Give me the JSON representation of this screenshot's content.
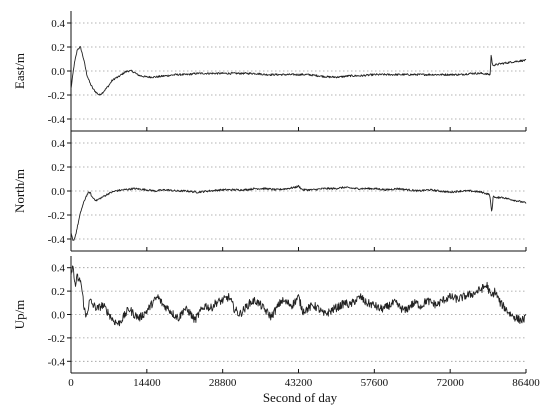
{
  "chart_data": [
    {
      "type": "line",
      "ylabel": "East/m",
      "ylim": [
        -0.5,
        0.5
      ],
      "yticks": [
        -0.4,
        -0.2,
        0.0,
        0.2,
        0.4
      ],
      "ytick_labels": [
        "-0.4",
        "-0.2",
        "0.0",
        "0.2",
        "0.4"
      ],
      "xlim": [
        0,
        86400
      ],
      "grid": "horizontal dotted",
      "series": [
        {
          "color": "#222222",
          "x": [
            0,
            600,
            1200,
            1800,
            2400,
            3000,
            3600,
            4200,
            4800,
            5400,
            6000,
            6600,
            7200,
            7800,
            8400,
            9000,
            9600,
            10200,
            10800,
            11400,
            12000,
            12600,
            13200,
            14400,
            16000,
            18000,
            20000,
            22000,
            24000,
            26000,
            28800,
            31000,
            33000,
            35000,
            37000,
            39000,
            41000,
            43200,
            45000,
            47000,
            49000,
            51000,
            53000,
            55000,
            57600,
            60000,
            62000,
            64000,
            66000,
            68000,
            70000,
            72000,
            74000,
            76000,
            78000,
            79600,
            79800,
            80000,
            80500,
            81500,
            83000,
            84500,
            86400
          ],
          "y": [
            -0.15,
            0.05,
            0.18,
            0.2,
            0.1,
            -0.03,
            -0.1,
            -0.15,
            -0.18,
            -0.2,
            -0.18,
            -0.15,
            -0.12,
            -0.08,
            -0.06,
            -0.05,
            -0.03,
            -0.01,
            0.0,
            0.0,
            -0.01,
            -0.03,
            -0.04,
            -0.05,
            -0.05,
            -0.04,
            -0.03,
            -0.03,
            -0.02,
            -0.02,
            -0.02,
            -0.02,
            -0.02,
            -0.02,
            -0.03,
            -0.03,
            -0.03,
            -0.03,
            -0.03,
            -0.04,
            -0.05,
            -0.05,
            -0.04,
            -0.04,
            -0.03,
            -0.03,
            -0.03,
            -0.03,
            -0.03,
            -0.03,
            -0.03,
            -0.03,
            -0.03,
            -0.02,
            -0.02,
            -0.03,
            0.15,
            0.05,
            0.05,
            0.06,
            0.07,
            0.08,
            0.09
          ]
        }
      ]
    },
    {
      "type": "line",
      "ylabel": "North/m",
      "ylim": [
        -0.5,
        0.5
      ],
      "yticks": [
        -0.4,
        -0.2,
        0.0,
        0.2,
        0.4
      ],
      "ytick_labels": [
        "-0.4",
        "-0.2",
        "0.0",
        "0.2",
        "0.4"
      ],
      "xlim": [
        0,
        86400
      ],
      "grid": "horizontal dotted",
      "series": [
        {
          "color": "#222222",
          "x": [
            0,
            400,
            800,
            1200,
            1600,
            2000,
            2400,
            2800,
            3200,
            3600,
            4000,
            4800,
            5600,
            6400,
            7200,
            8400,
            10000,
            12000,
            14400,
            16000,
            18000,
            20000,
            22000,
            24000,
            26000,
            28800,
            31000,
            33000,
            35000,
            37000,
            39000,
            41000,
            42500,
            43200,
            44000,
            46000,
            48000,
            50000,
            52000,
            54000,
            56000,
            57600,
            60000,
            62000,
            64000,
            66000,
            68000,
            70000,
            72000,
            74000,
            76000,
            78000,
            79500,
            79900,
            80200,
            80800,
            81600,
            82500,
            83500,
            84500,
            85500,
            86400
          ],
          "y": [
            -0.35,
            -0.42,
            -0.38,
            -0.3,
            -0.22,
            -0.15,
            -0.1,
            -0.05,
            -0.02,
            -0.01,
            -0.05,
            -0.08,
            -0.06,
            -0.04,
            -0.02,
            0.0,
            0.01,
            0.02,
            0.01,
            0.0,
            0.01,
            0.0,
            0.0,
            -0.01,
            0.0,
            0.01,
            0.01,
            0.01,
            0.02,
            0.02,
            0.01,
            0.02,
            0.03,
            0.04,
            0.01,
            0.01,
            0.02,
            0.02,
            0.03,
            0.02,
            0.02,
            0.02,
            0.01,
            0.02,
            0.01,
            0.0,
            0.01,
            0.0,
            -0.01,
            0.0,
            0.0,
            -0.01,
            -0.03,
            -0.18,
            -0.04,
            -0.06,
            -0.05,
            -0.06,
            -0.07,
            -0.08,
            -0.09,
            -0.1
          ]
        }
      ]
    },
    {
      "type": "line",
      "ylabel": "Up/m",
      "ylim": [
        -0.5,
        0.5
      ],
      "yticks": [
        -0.4,
        -0.2,
        0.0,
        0.2,
        0.4
      ],
      "ytick_labels": [
        "-0.4",
        "-0.2",
        "0.0",
        "0.2",
        "0.4"
      ],
      "xlim": [
        0,
        86400
      ],
      "xticks": [
        0,
        14400,
        28800,
        43200,
        57600,
        72000,
        86400
      ],
      "xtick_labels": [
        "0",
        "14400",
        "28800",
        "43200",
        "57600",
        "72000",
        "86400"
      ],
      "xlabel": "Second of day",
      "grid": "horizontal dotted",
      "series": [
        {
          "color": "#222222",
          "x": [
            0,
            300,
            600,
            900,
            1200,
            1500,
            1800,
            2100,
            2400,
            2800,
            3200,
            3600,
            4200,
            5000,
            6000,
            7000,
            8000,
            9000,
            10000,
            11000,
            12000,
            13000,
            14400,
            15500,
            16500,
            17500,
            18500,
            19500,
            20500,
            21500,
            22500,
            23500,
            24500,
            25500,
            26500,
            27500,
            28800,
            30000,
            31000,
            32000,
            33000,
            34000,
            35000,
            36000,
            37000,
            38000,
            39000,
            40000,
            41000,
            42000,
            43200,
            44000,
            45000,
            46000,
            47000,
            48000,
            49000,
            50000,
            51000,
            52000,
            53000,
            54000,
            55000,
            56000,
            57600,
            58500,
            59500,
            60500,
            61500,
            62500,
            63500,
            64500,
            65500,
            66500,
            67500,
            68500,
            69500,
            70500,
            72000,
            73500,
            75000,
            76500,
            78000,
            79000,
            79800,
            80500,
            81500,
            82500,
            83500,
            84500,
            85500,
            86400
          ],
          "y": [
            0.3,
            0.45,
            0.3,
            0.25,
            0.33,
            0.28,
            0.3,
            0.2,
            0.1,
            -0.03,
            0.05,
            0.12,
            0.08,
            0.05,
            0.08,
            0.02,
            -0.05,
            -0.08,
            -0.02,
            0.05,
            0.0,
            -0.03,
            0.03,
            0.1,
            0.15,
            0.08,
            0.05,
            0.0,
            -0.03,
            0.05,
            0.02,
            -0.05,
            0.02,
            0.08,
            0.05,
            0.1,
            0.12,
            0.15,
            0.05,
            0.0,
            0.05,
            0.1,
            0.12,
            0.08,
            0.03,
            -0.02,
            0.05,
            0.12,
            0.1,
            0.08,
            0.15,
            0.03,
            0.05,
            0.08,
            0.05,
            0.0,
            0.02,
            0.05,
            0.07,
            0.1,
            0.08,
            0.12,
            0.15,
            0.1,
            0.08,
            0.05,
            0.05,
            0.08,
            0.1,
            0.06,
            0.03,
            0.08,
            0.1,
            0.07,
            0.12,
            0.1,
            0.08,
            0.12,
            0.15,
            0.13,
            0.16,
            0.18,
            0.22,
            0.25,
            0.15,
            0.2,
            0.1,
            0.05,
            0.0,
            -0.03,
            -0.05,
            -0.03
          ]
        }
      ]
    }
  ]
}
